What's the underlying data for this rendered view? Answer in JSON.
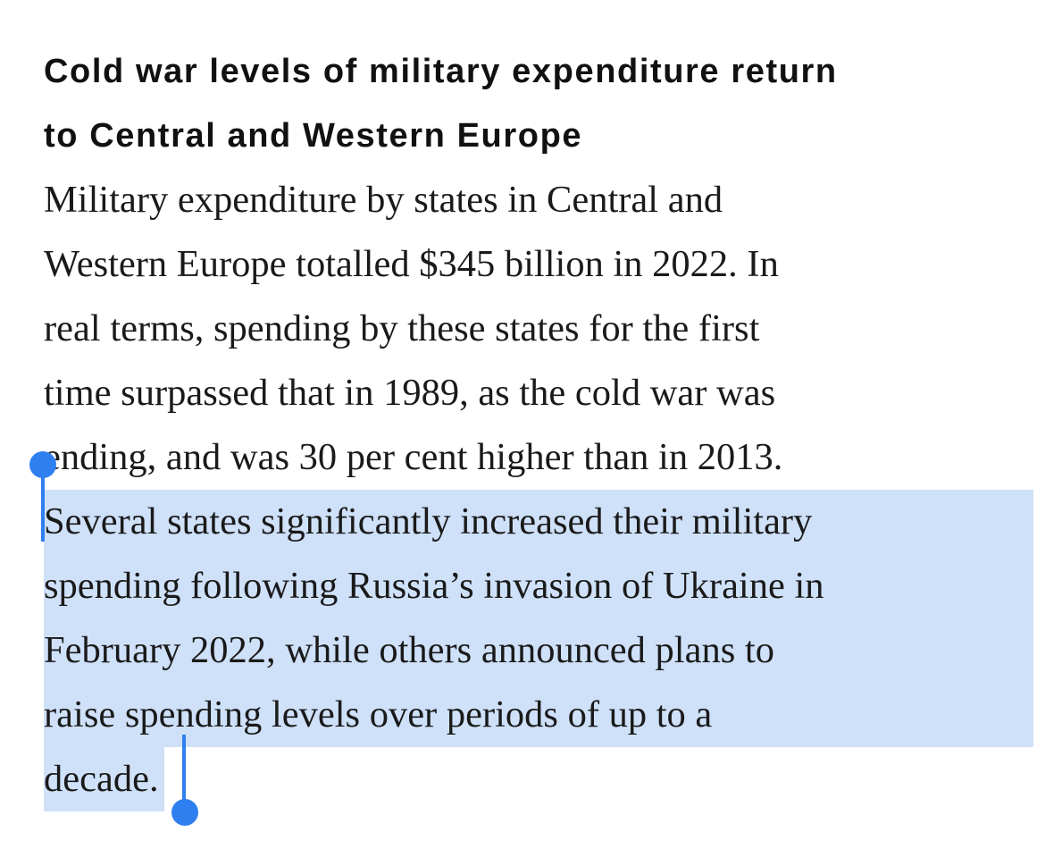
{
  "article": {
    "headline_lines": [
      "Cold war levels of military expenditure return",
      "to Central and Western Europe"
    ],
    "unselected_lines": [
      "Military expenditure by states in Central and",
      "Western Europe totalled $345 billion in 2022. In",
      "real terms, spending by these states for the first",
      "time surpassed that in 1989, as the cold war was",
      "ending, and was 30 per cent higher than in 2013."
    ],
    "selected_lines": [
      "Several states significantly increased their military",
      "spending following Russia’s invasion of Ukraine in",
      "February 2022, while others announced plans to",
      "raise spending levels over periods of up to a",
      "decade."
    ]
  },
  "selection": {
    "highlight_color": "#cfe1f9",
    "handle_color": "#2f7ff0"
  }
}
